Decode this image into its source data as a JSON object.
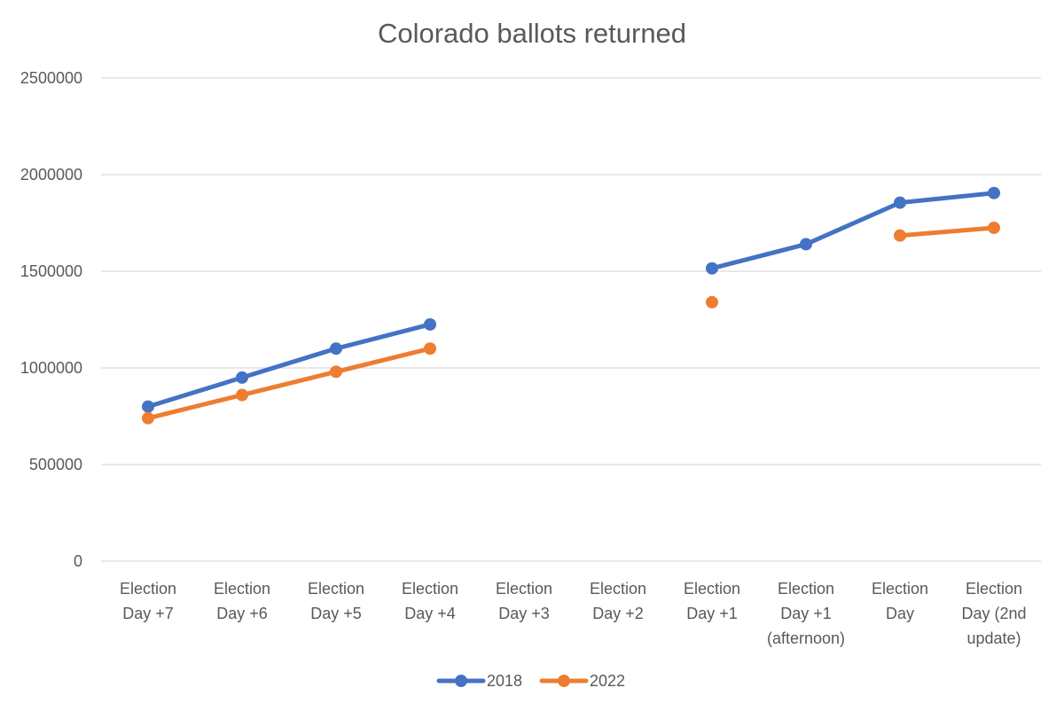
{
  "chart_data": {
    "type": "line",
    "title": "Colorado ballots returned",
    "categories": [
      [
        "Election",
        "Day +7"
      ],
      [
        "Election",
        "Day +6"
      ],
      [
        "Election",
        "Day +5"
      ],
      [
        "Election",
        "Day +4"
      ],
      [
        "Election",
        "Day +3"
      ],
      [
        "Election",
        "Day +2"
      ],
      [
        "Election",
        "Day +1"
      ],
      [
        "Election",
        "Day +1",
        "(afternoon)"
      ],
      [
        "Election",
        "Day"
      ],
      [
        "Election",
        "Day (2nd",
        "update)"
      ]
    ],
    "yticks": [
      "2500000",
      "2000000",
      "1500000",
      "1000000",
      "500000",
      "0"
    ],
    "ylim": [
      0,
      2500000
    ],
    "grid": true,
    "legend": "bottom",
    "series": [
      {
        "name": "2018",
        "color": "#4472c4",
        "values": [
          800000,
          950000,
          1100000,
          1225000,
          null,
          null,
          1515000,
          1640000,
          1855000,
          1905000
        ]
      },
      {
        "name": "2022",
        "color": "#ed7d31",
        "values": [
          740000,
          860000,
          980000,
          1100000,
          null,
          null,
          1340000,
          null,
          1685000,
          1725000
        ]
      }
    ]
  }
}
